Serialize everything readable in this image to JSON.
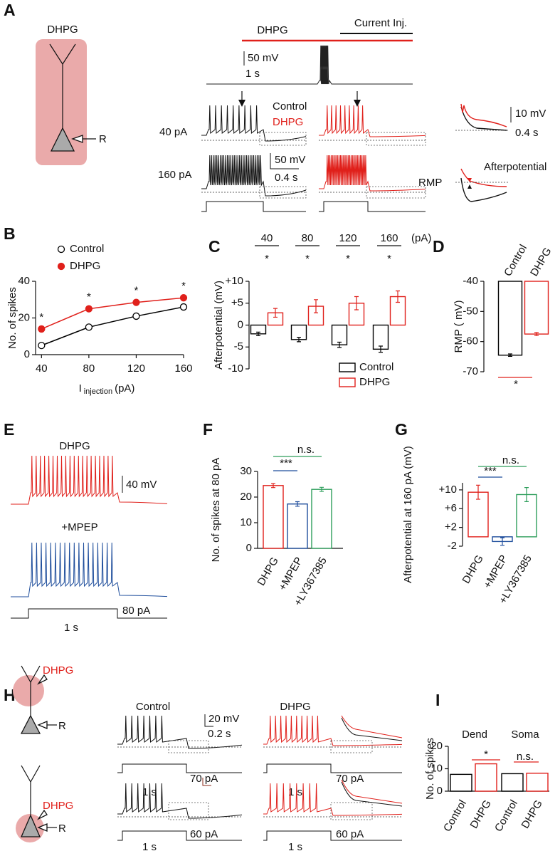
{
  "panel_labels": [
    "A",
    "B",
    "C",
    "D",
    "E",
    "F",
    "G",
    "H",
    "I"
  ],
  "panel_a": {
    "cell_label": "DHPG",
    "recording": "R",
    "drug_bar": "DHPG",
    "current_bar": "Current Inj.",
    "scale_v": "50 mV",
    "scale_t": "1 s",
    "legend": [
      "Control",
      "DHPG"
    ],
    "currents": [
      "40 pA",
      "160 pA"
    ],
    "scale2_v": "50 mV",
    "scale2_t": "0.4 s",
    "inset_v": "10 mV",
    "inset_t": "0.4 s",
    "afterpotential": "Afterpotential",
    "rmp": "RMP"
  },
  "panel_e": {
    "drug": "DHPG",
    "scale_v": "40 mV",
    "antagonist": "+MPEP",
    "current": "80 pA",
    "duration": "1 s"
  },
  "panel_h": {
    "sites": [
      "DHPG",
      "DHPG"
    ],
    "recording": [
      "R",
      "R"
    ],
    "conditions": [
      "Control",
      "DHPG"
    ],
    "scale_v": "20 mV",
    "scale_t": "0.2 s",
    "durations": [
      "1 s",
      "1 s",
      "1 s",
      "1 s"
    ],
    "currents": [
      "70 pA",
      "70 pA",
      "60 pA",
      "60 pA"
    ]
  },
  "chart_data": [
    {
      "type": "line",
      "y_label": "No. of spikes",
      "x_label": "I",
      "x_label_sub": "injection",
      "x_label_unit": "(pA)",
      "x": [
        40,
        80,
        120,
        160
      ],
      "series": [
        {
          "name": "Control",
          "color": "#000000",
          "marker": "open",
          "values": [
            5,
            15,
            21,
            26
          ]
        },
        {
          "name": "DHPG",
          "color": "#e0201b",
          "marker": "filled",
          "values": [
            14,
            25,
            28.5,
            31
          ],
          "errors": [
            1.5,
            1,
            1,
            1
          ]
        }
      ],
      "xlim": [
        35,
        160
      ],
      "xticks": [
        40,
        80,
        120,
        160
      ],
      "ylim": [
        0,
        40
      ],
      "yticks": [
        0,
        20,
        40
      ],
      "annotations": [
        "*",
        "*",
        "*",
        "*"
      ]
    },
    {
      "type": "bar",
      "y_label": "Afterpotential (mV)",
      "categories": [
        "40",
        "80",
        "120",
        "160"
      ],
      "category_unit": "(pA)",
      "series": [
        {
          "name": "Control",
          "color": "#000000",
          "values": [
            -2,
            -3.3,
            -4.5,
            -5.5
          ],
          "errors": [
            0.4,
            0.5,
            0.6,
            0.7
          ]
        },
        {
          "name": "DHPG",
          "color": "#e0201b",
          "values": [
            2.8,
            4.3,
            5,
            6.5
          ],
          "errors": [
            1,
            1.5,
            1.5,
            1.3
          ]
        }
      ],
      "ylim": [
        -10,
        10
      ],
      "yticks": [
        {
          "value": 10,
          "label": "+10"
        },
        {
          "value": 5,
          "label": "+5"
        },
        0,
        -5,
        -10
      ],
      "annotations": [
        "*",
        "*",
        "*",
        "*"
      ]
    },
    {
      "type": "bar",
      "y_label": "RMP ( mV)",
      "categories": [
        "Control",
        "DHPG"
      ],
      "values": [
        -64.5,
        -57.5
      ],
      "errors": [
        0.4,
        0.5
      ],
      "colors": [
        "#000000",
        "#e0201b"
      ],
      "ylim": [
        -70,
        -40
      ],
      "yticks": [
        -40,
        -50,
        -60,
        -70
      ],
      "annotations": [
        {
          "label": "*",
          "color": "#e0201b"
        }
      ]
    },
    {
      "type": "bar",
      "y_label": "No. of spikes at 80 pA",
      "categories": [
        "DHPG",
        "+MPEP",
        "+LY367385"
      ],
      "values": [
        24.5,
        17.3,
        23
      ],
      "errors": [
        0.8,
        0.9,
        0.8
      ],
      "colors": [
        "#e0201b",
        "#1f4e9c",
        "#2e9e5b"
      ],
      "ylim": [
        0,
        30
      ],
      "yticks": [
        0,
        10,
        20,
        30
      ],
      "annotations": [
        {
          "label": "***",
          "color": "#1f4e9c"
        },
        {
          "label": "n.s.",
          "color": "#2e9e5b"
        }
      ]
    },
    {
      "type": "bar",
      "y_label": "Afterpotential at 160 pA (mV)",
      "categories": [
        "DHPG",
        "+MPEP",
        "+LY367385"
      ],
      "values": [
        9.5,
        -1,
        9
      ],
      "errors": [
        1.5,
        0.8,
        1.5
      ],
      "colors": [
        "#e0201b",
        "#1f4e9c",
        "#2e9e5b"
      ],
      "ylim": [
        -2,
        11.5
      ],
      "yticks": [
        {
          "value": 10,
          "label": "+10"
        },
        {
          "value": 6,
          "label": "+6"
        },
        {
          "value": 2,
          "label": "+2"
        },
        -2
      ],
      "annotations": [
        {
          "label": "***",
          "color": "#1f4e9c"
        },
        {
          "label": "n.s.",
          "color": "#2e9e5b"
        }
      ]
    },
    {
      "type": "bar",
      "y_label": "No. of spikes",
      "groups": [
        "Dend",
        "Soma"
      ],
      "categories": [
        "Control",
        "DHPG",
        "Control",
        "DHPG"
      ],
      "values": [
        7.5,
        12.2,
        7.8,
        8
      ],
      "colors": [
        "#000000",
        "#e0201b",
        "#000000",
        "#e0201b"
      ],
      "ylim": [
        0,
        20
      ],
      "yticks": [
        0,
        10,
        20
      ],
      "annotations": [
        {
          "label": "*",
          "color": "#e0201b"
        },
        {
          "label": "n.s.",
          "color": "#e0201b"
        }
      ]
    }
  ]
}
